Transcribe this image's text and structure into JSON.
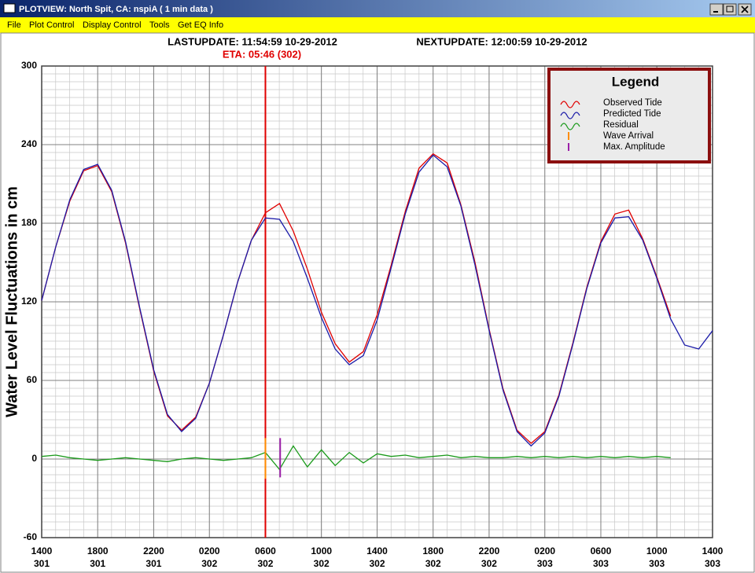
{
  "window": {
    "title": "PLOTVIEW:  North Spit, CA: nspiA (  1 min data )",
    "menu": [
      "File",
      "Plot Control",
      "Display Control",
      "Tools",
      "Get EQ Info"
    ]
  },
  "chart_data": {
    "type": "line",
    "header": {
      "last_update": "LASTUPDATE: 11:54:59 10-29-2012",
      "next_update": "NEXTUPDATE: 12:00:59 10-29-2012",
      "eta": "ETA: 05:46 (302)"
    },
    "eta_x": 302.25,
    "eta_color": "#e00000",
    "ylabel": "Water Level Fluctuations in cm",
    "legend_title": "Legend",
    "legend_position": "upper right",
    "xlim": [
      301.583,
      303.583
    ],
    "ylim": [
      -60,
      300
    ],
    "yticks": [
      -60,
      0,
      60,
      120,
      180,
      240,
      300
    ],
    "xticks": [
      {
        "value": 301.583,
        "label": "1400"
      },
      {
        "value": 301.75,
        "label": "1800"
      },
      {
        "value": 301.917,
        "label": "2200"
      },
      {
        "value": 302.083,
        "label": "0200"
      },
      {
        "value": 302.25,
        "label": "0600"
      },
      {
        "value": 302.417,
        "label": "1000"
      },
      {
        "value": 302.583,
        "label": "1400"
      },
      {
        "value": 302.75,
        "label": "1800"
      },
      {
        "value": 302.917,
        "label": "2200"
      },
      {
        "value": 303.083,
        "label": "0200"
      },
      {
        "value": 303.25,
        "label": "0600"
      },
      {
        "value": 303.417,
        "label": "1000"
      },
      {
        "value": 303.583,
        "label": "1400"
      }
    ],
    "xtick_days": [
      "301",
      "301",
      "301",
      "302",
      "302",
      "302",
      "302",
      "302",
      "302",
      "303",
      "303",
      "303",
      "303"
    ],
    "grid": true,
    "minor_grid": true,
    "x": [
      301.583,
      301.625,
      301.667,
      301.708,
      301.75,
      301.792,
      301.833,
      301.875,
      301.917,
      301.958,
      302,
      302.042,
      302.083,
      302.125,
      302.167,
      302.208,
      302.25,
      302.292,
      302.333,
      302.375,
      302.417,
      302.458,
      302.5,
      302.542,
      302.583,
      302.625,
      302.667,
      302.708,
      302.75,
      302.792,
      302.833,
      302.875,
      302.917,
      302.958,
      303,
      303.042,
      303.083,
      303.125,
      303.167,
      303.208,
      303.25,
      303.292,
      303.333,
      303.375,
      303.417,
      303.458,
      303.5,
      303.542,
      303.583
    ],
    "series": [
      {
        "name": "Observed Tide",
        "color": "#e00000",
        "style": "line",
        "values": [
          121,
          162,
          197,
          220,
          224,
          204,
          165,
          115,
          67,
          33,
          22,
          32,
          58,
          95,
          135,
          167,
          188,
          195,
          174,
          145,
          112,
          88,
          74,
          82,
          110,
          148,
          189,
          222,
          233,
          226,
          194,
          150,
          99,
          54,
          22,
          12,
          21,
          49,
          89,
          131,
          166,
          187,
          190,
          168,
          139,
          109,
          null,
          null,
          null
        ]
      },
      {
        "name": "Predicted Tide",
        "color": "#1a1aa8",
        "style": "line",
        "values": [
          121,
          162,
          198,
          221,
          225,
          205,
          166,
          116,
          68,
          34,
          21,
          31,
          58,
          95,
          135,
          167,
          184,
          183,
          166,
          138,
          108,
          84,
          72,
          79,
          106,
          146,
          187,
          219,
          232,
          223,
          193,
          148,
          98,
          53,
          21,
          10,
          20,
          48,
          88,
          130,
          165,
          184,
          185,
          167,
          138,
          107,
          87,
          84,
          98
        ]
      },
      {
        "name": "Residual",
        "color": "#1a9a1a",
        "style": "line",
        "values": [
          2,
          3,
          1,
          0,
          -1,
          0,
          1,
          0,
          -1,
          -2,
          0,
          1,
          0,
          -1,
          0,
          1,
          5,
          -8,
          10,
          -6,
          7,
          -5,
          5,
          -3,
          4,
          2,
          3,
          1,
          2,
          3,
          1,
          2,
          1,
          1,
          2,
          1,
          2,
          1,
          2,
          1,
          2,
          1,
          2,
          1,
          2,
          1,
          null,
          null,
          null
        ]
      },
      {
        "name": "Wave Arrival",
        "color": "#ff8c00",
        "style": "tick",
        "x": [
          302.25,
          302.25
        ],
        "values": [
          -15,
          16
        ]
      },
      {
        "name": "Max. Amplitude",
        "color": "#9b1fa8",
        "style": "tick",
        "x": [
          302.294,
          302.294
        ],
        "values": [
          -14,
          16
        ]
      }
    ]
  }
}
